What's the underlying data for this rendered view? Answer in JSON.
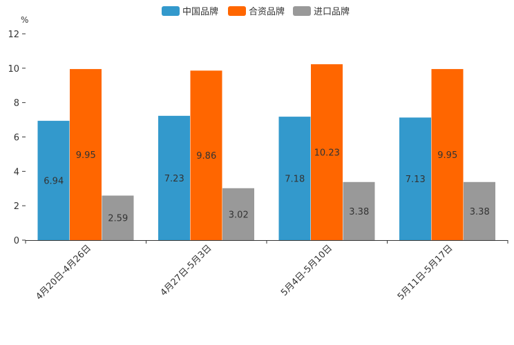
{
  "chart_data": {
    "type": "bar",
    "title": "",
    "xlabel": "",
    "ylabel": "%",
    "ylim": [
      0,
      12
    ],
    "yticks": [
      0,
      2,
      4,
      6,
      8,
      10,
      12
    ],
    "grid": false,
    "legend_position": "top-center",
    "categories": [
      "4月20日-4月26日",
      "4月27日-5月3日",
      "5月4日-5月10日",
      "5月11日-5月17日"
    ],
    "series": [
      {
        "name": "中国品牌",
        "color": "#3399cc",
        "values": [
          6.94,
          7.23,
          7.18,
          7.13
        ],
        "labels": [
          "6.94",
          "7.23",
          "7.18",
          "7.13"
        ]
      },
      {
        "name": "合资品牌",
        "color": "#ff6600",
        "values": [
          9.95,
          9.86,
          10.23,
          9.95
        ],
        "labels": [
          "9.95",
          "9.86",
          "10.23",
          "9.95"
        ]
      },
      {
        "name": "进口品牌",
        "color": "#999999",
        "values": [
          2.59,
          3.02,
          3.38,
          3.38
        ],
        "labels": [
          "2.59",
          "3.02",
          "3.38",
          "3.38"
        ]
      }
    ]
  }
}
